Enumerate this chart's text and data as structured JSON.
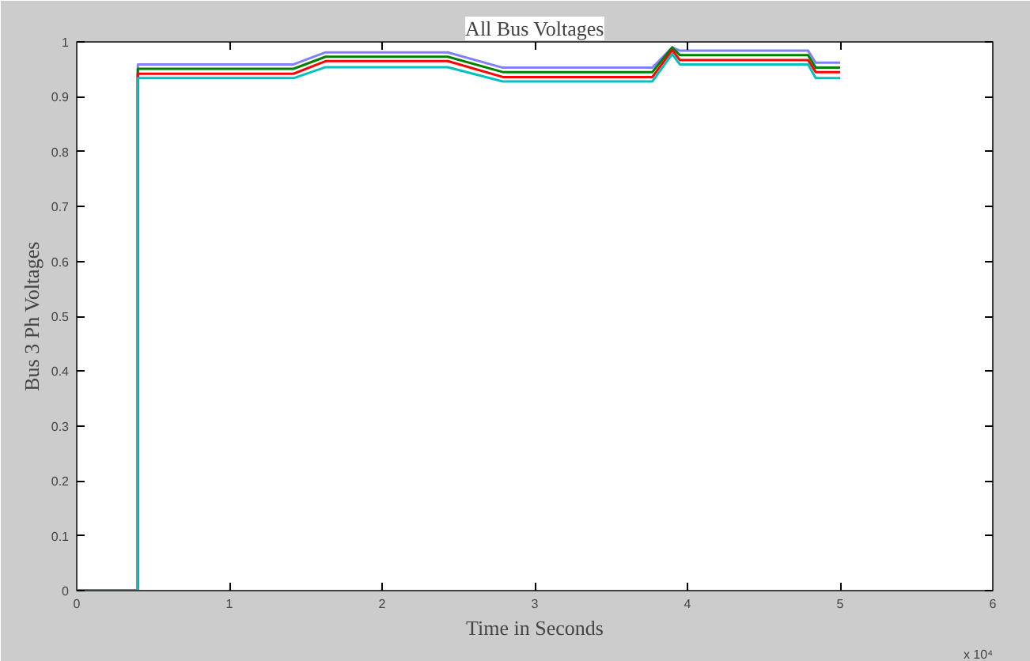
{
  "chart_data": {
    "type": "line",
    "title": "All Bus Voltages",
    "xlabel": "Time in Seconds",
    "ylabel": "Bus 3 Ph Voltages",
    "annotations": [
      "x 10⁴"
    ],
    "series": [
      {
        "color": "#8080ff",
        "x": [
          0,
          0.4,
          0.4,
          1.42,
          1.63,
          2.43,
          2.79,
          3.77,
          3.9,
          3.95,
          4.79,
          4.84,
          5.0
        ],
        "values": [
          0,
          0,
          0.959,
          0.959,
          0.981,
          0.981,
          0.953,
          0.953,
          0.99,
          0.984,
          0.984,
          0.962,
          0.962
        ]
      },
      {
        "color": "#008000",
        "x": [
          0,
          0.4,
          0.4,
          1.42,
          1.63,
          2.43,
          2.79,
          3.77,
          3.9,
          3.95,
          4.79,
          4.84,
          5.0
        ],
        "values": [
          0,
          0,
          0.951,
          0.951,
          0.973,
          0.973,
          0.945,
          0.945,
          0.99,
          0.976,
          0.976,
          0.953,
          0.953
        ]
      },
      {
        "color": "#ff0000",
        "x": [
          0,
          0.4,
          0.4,
          1.42,
          1.63,
          2.43,
          2.79,
          3.77,
          3.9,
          3.95,
          4.79,
          4.84,
          5.0
        ],
        "values": [
          0,
          0,
          0.942,
          0.942,
          0.965,
          0.965,
          0.936,
          0.936,
          0.985,
          0.967,
          0.967,
          0.945,
          0.945
        ]
      },
      {
        "color": "#00c0c0",
        "x": [
          0,
          0.4,
          0.4,
          1.42,
          1.63,
          2.43,
          2.79,
          3.77,
          3.9,
          3.95,
          4.79,
          4.84,
          5.0
        ],
        "values": [
          0,
          0,
          0.934,
          0.934,
          0.954,
          0.954,
          0.928,
          0.928,
          0.978,
          0.959,
          0.959,
          0.934,
          0.934
        ]
      }
    ],
    "xlim": [
      0,
      6
    ],
    "xticks": [
      0,
      1,
      2,
      3,
      4,
      5,
      6
    ],
    "ylim": [
      0,
      1
    ],
    "yticks": [
      0,
      0.1,
      0.2,
      0.3,
      0.4,
      0.5,
      0.6,
      0.7,
      0.8,
      0.9,
      1
    ],
    "grid": false,
    "marker": "none",
    "line_style": "solid"
  }
}
